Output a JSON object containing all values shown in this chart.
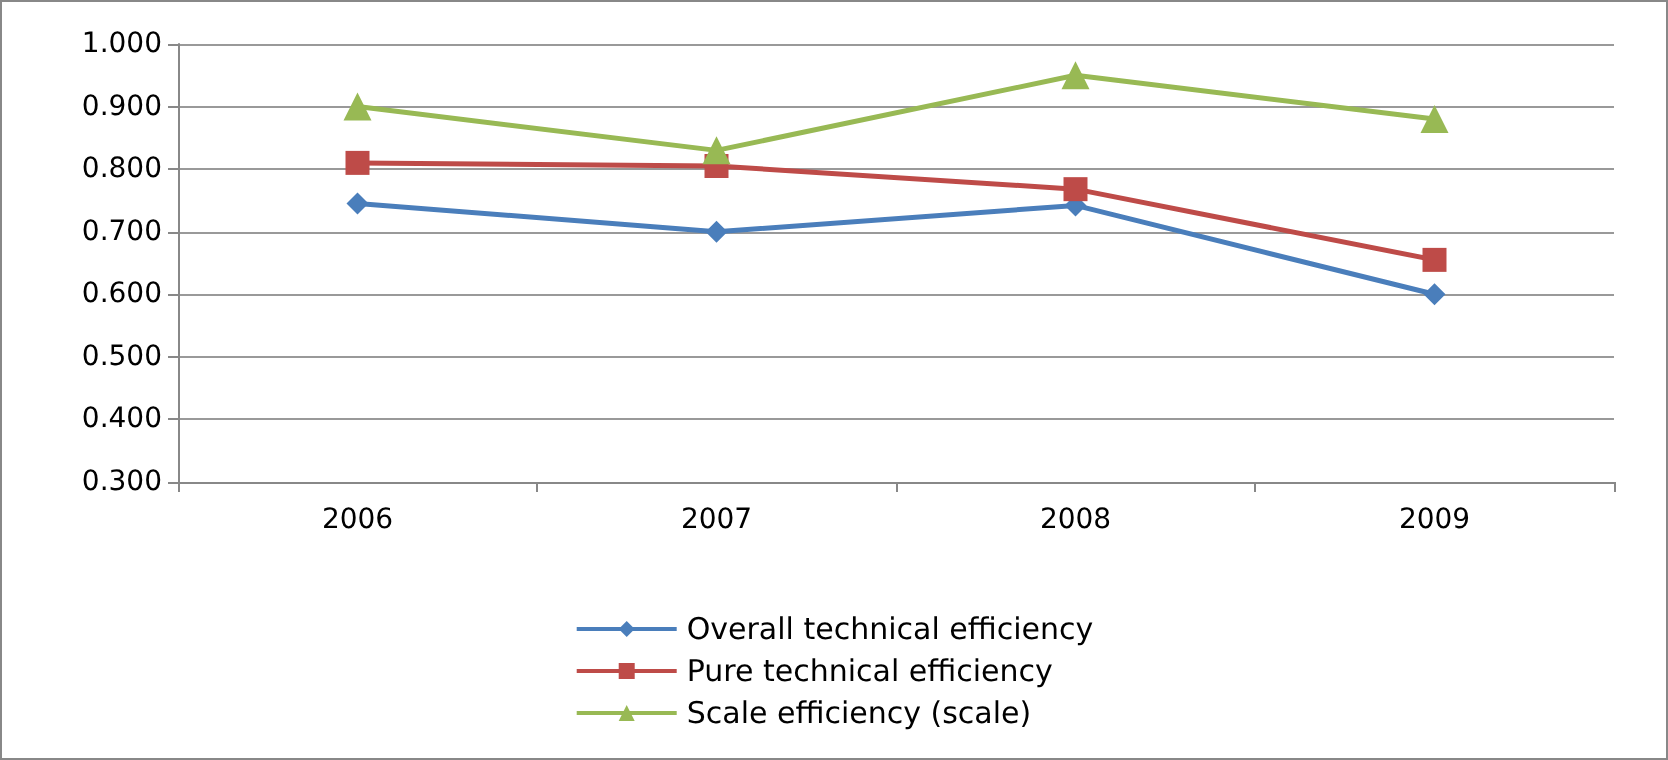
{
  "chart_data": {
    "type": "line",
    "categories": [
      "2006",
      "2007",
      "2008",
      "2009"
    ],
    "series": [
      {
        "name": "Overall technical efficiency",
        "color": "#4a7ebb",
        "marker": "diamond",
        "values": [
          0.745,
          0.7,
          0.742,
          0.6
        ]
      },
      {
        "name": "Pure technical efficiency",
        "color": "#be4b48",
        "marker": "square",
        "values": [
          0.81,
          0.805,
          0.768,
          0.655
        ]
      },
      {
        "name": "Scale efficiency (scale)",
        "color": "#98b954",
        "marker": "triangle",
        "values": [
          0.9,
          0.83,
          0.95,
          0.88
        ]
      }
    ],
    "ylim": [
      0.3,
      1.0
    ],
    "yticks": [
      {
        "value": 0.3,
        "label": "0.300"
      },
      {
        "value": 0.4,
        "label": "0.400"
      },
      {
        "value": 0.5,
        "label": "0.500"
      },
      {
        "value": 0.6,
        "label": "0.600"
      },
      {
        "value": 0.7,
        "label": "0.700"
      },
      {
        "value": 0.8,
        "label": "0.800"
      },
      {
        "value": 0.9,
        "label": "0.900"
      },
      {
        "value": 1.0,
        "label": "1.000"
      }
    ],
    "grid": "y",
    "legend": "bottom"
  }
}
